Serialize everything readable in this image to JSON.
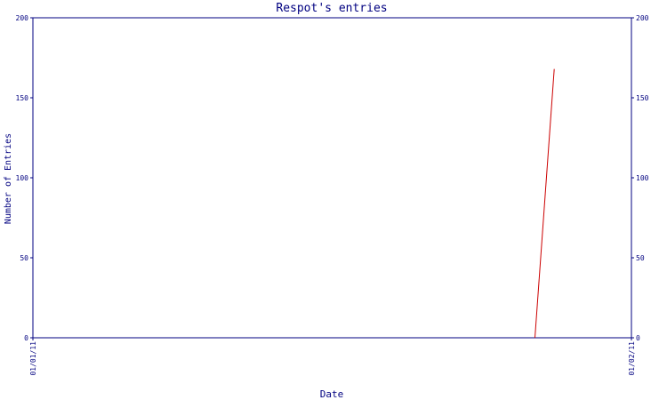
{
  "colors": {
    "axis": "#000080",
    "line": "#cc0000",
    "background": "#ffffff"
  },
  "chart_data": {
    "type": "line",
    "title": "Respot's entries",
    "xlabel": "Date",
    "ylabel": "Number of Entries",
    "ylim": [
      0,
      200
    ],
    "yticks": [
      0,
      50,
      100,
      150,
      200
    ],
    "xlim": [
      "2011-01-01",
      "2011-02-01"
    ],
    "xticks": [
      "01/01/11",
      "01/02/11"
    ],
    "grid": false,
    "legend": "none",
    "series": [
      {
        "x": [
          "2011-01-27",
          "2011-01-28"
        ],
        "y": [
          0,
          168
        ]
      }
    ]
  }
}
